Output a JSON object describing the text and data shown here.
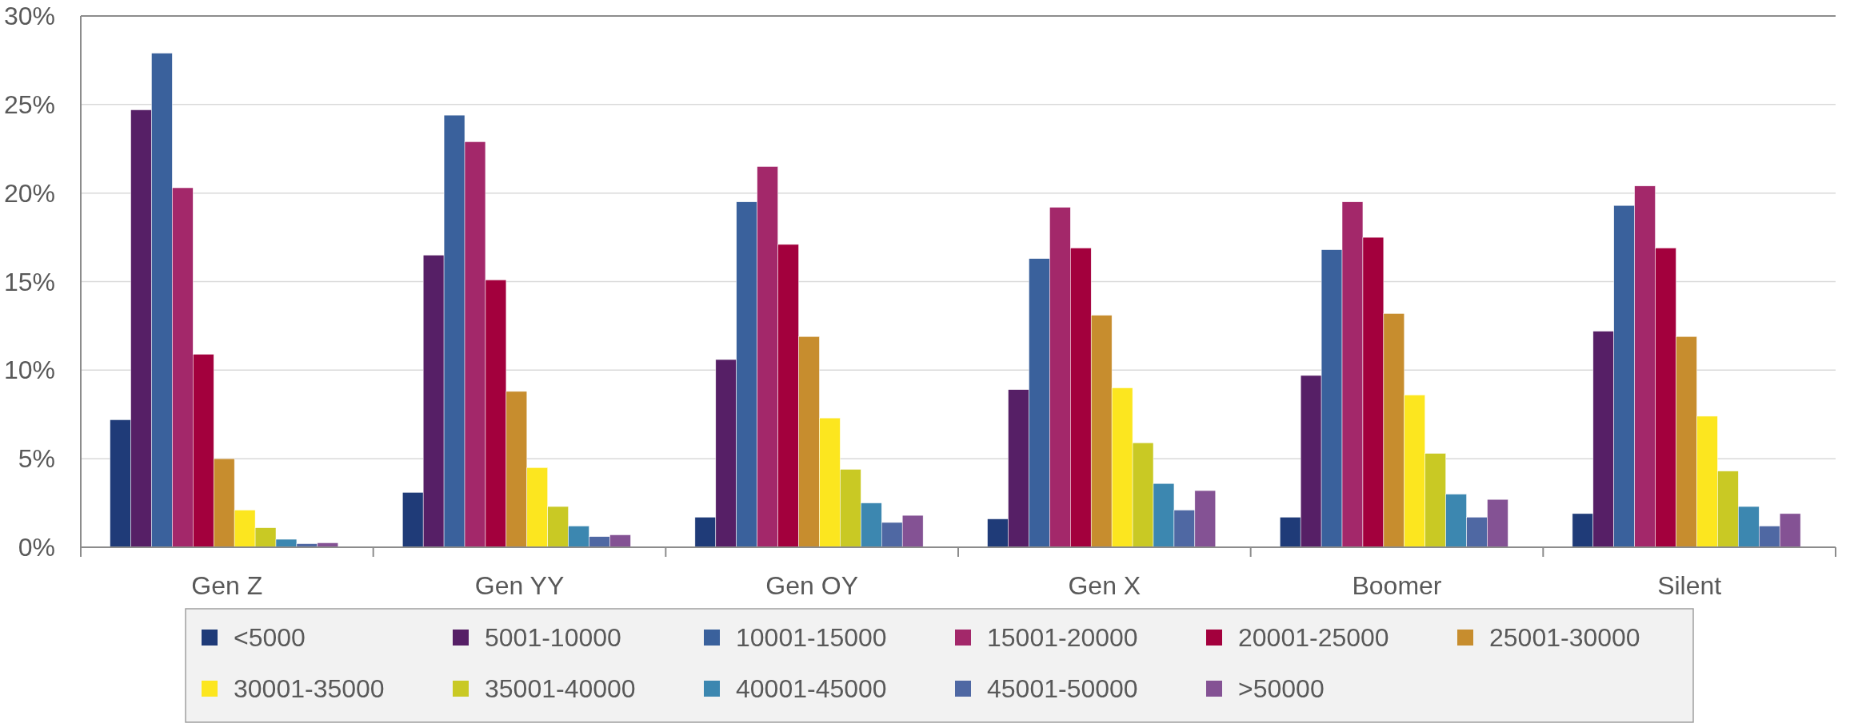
{
  "chart_data": {
    "type": "bar",
    "categories": [
      "Gen Z",
      "Gen YY",
      "Gen OY",
      "Gen X",
      "Boomer",
      "Silent"
    ],
    "series": [
      {
        "name": "<5000",
        "color": "#1f3b78",
        "values": [
          7.2,
          3.1,
          1.7,
          1.6,
          1.7,
          1.9
        ]
      },
      {
        "name": "5001-10000",
        "color": "#561f66",
        "values": [
          24.7,
          16.5,
          10.6,
          8.9,
          9.7,
          12.2
        ]
      },
      {
        "name": "10001-15000",
        "color": "#3a619c",
        "values": [
          27.9,
          24.4,
          19.5,
          16.3,
          16.8,
          19.3
        ]
      },
      {
        "name": "15001-20000",
        "color": "#a3286a",
        "values": [
          20.3,
          22.9,
          21.5,
          19.2,
          19.5,
          20.4
        ]
      },
      {
        "name": "20001-25000",
        "color": "#a3003d",
        "values": [
          10.9,
          15.1,
          17.1,
          16.9,
          17.5,
          16.9
        ]
      },
      {
        "name": "25001-30000",
        "color": "#c78d2e",
        "values": [
          5.0,
          8.8,
          11.9,
          13.1,
          13.2,
          11.9
        ]
      },
      {
        "name": "30001-35000",
        "color": "#fce61f",
        "values": [
          2.1,
          4.5,
          7.3,
          9.0,
          8.6,
          7.4
        ]
      },
      {
        "name": "35001-40000",
        "color": "#c9c924",
        "values": [
          1.1,
          2.3,
          4.4,
          5.9,
          5.3,
          4.3
        ]
      },
      {
        "name": "40001-45000",
        "color": "#3c87b0",
        "values": [
          0.45,
          1.2,
          2.5,
          3.6,
          3.0,
          2.3
        ]
      },
      {
        "name": "45001-50000",
        "color": "#4f68a3",
        "values": [
          0.2,
          0.6,
          1.4,
          2.1,
          1.7,
          1.2
        ]
      },
      {
        "name": ">50000",
        "color": "#845294",
        "values": [
          0.25,
          0.7,
          1.8,
          3.2,
          2.7,
          1.9
        ]
      }
    ],
    "ylim": [
      0,
      30
    ],
    "yticks": [
      {
        "value": 0,
        "label": "0%"
      },
      {
        "value": 5,
        "label": "5%"
      },
      {
        "value": 10,
        "label": "10%"
      },
      {
        "value": 15,
        "label": "15%"
      },
      {
        "value": 20,
        "label": "20%"
      },
      {
        "value": 25,
        "label": "25%"
      },
      {
        "value": 30,
        "label": "30%"
      }
    ],
    "grid": "y",
    "legend": "bottom"
  }
}
